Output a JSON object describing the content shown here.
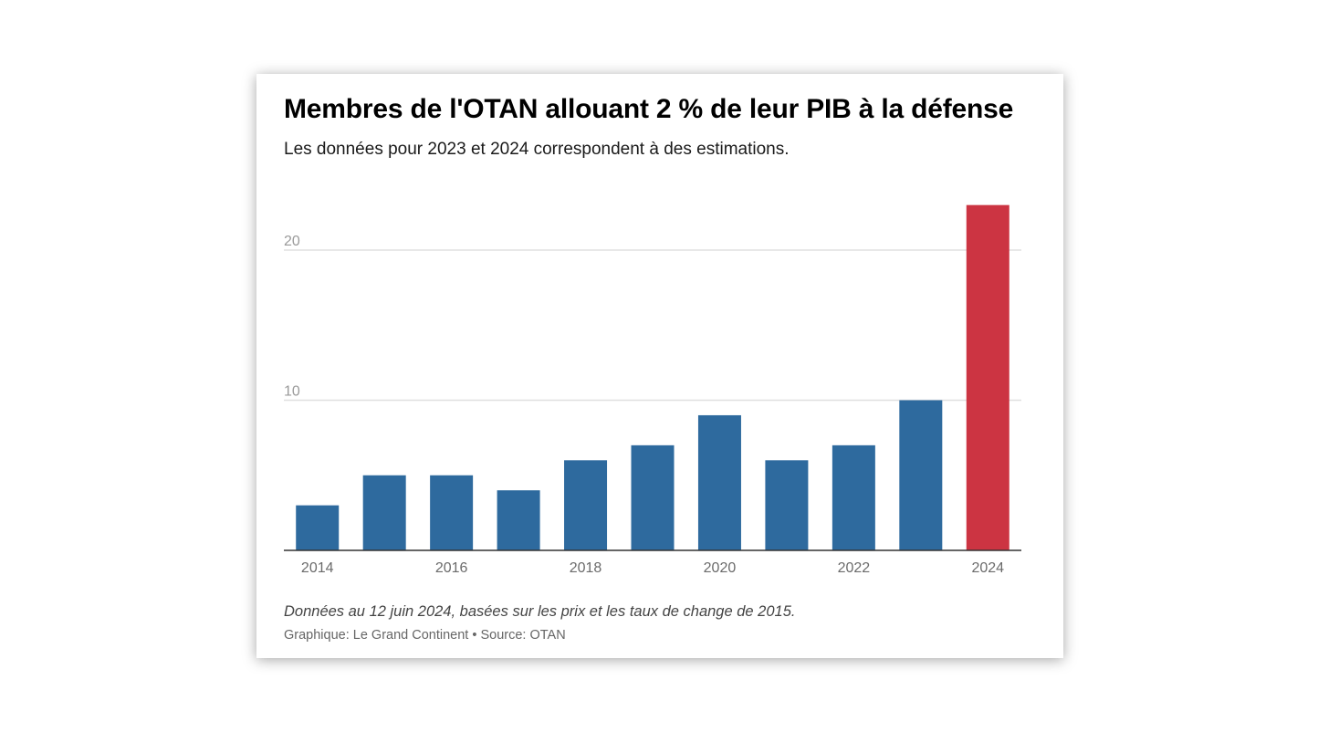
{
  "chart_data": {
    "type": "bar",
    "title": "Membres de l'OTAN allouant 2 % de leur PIB à la défense",
    "subtitle": "Les données pour 2023 et 2024 correspondent à des estimations.",
    "categories": [
      "2014",
      "2015",
      "2016",
      "2017",
      "2018",
      "2019",
      "2020",
      "2021",
      "2022",
      "2023",
      "2024"
    ],
    "values": [
      3,
      5,
      5,
      4,
      6,
      7,
      9,
      6,
      7,
      10,
      23
    ],
    "x_tick_labels": [
      "2014",
      "",
      "2016",
      "",
      "2018",
      "",
      "2020",
      "",
      "2022",
      "",
      "2024"
    ],
    "y_ticks": [
      10,
      20
    ],
    "ylim": [
      0,
      23
    ],
    "xlabel": "",
    "ylabel": "",
    "grid": true,
    "legend": "none",
    "colors": {
      "bar": "#2e6a9e",
      "highlight": "#cc3442",
      "grid": "#e0e0e0",
      "axis": "#333333"
    },
    "highlight_category": "2024",
    "note": "Données au 12 juin 2024, basées sur les prix et les taux de change de 2015.",
    "credit": "Graphique: Le Grand Continent • Source: OTAN"
  }
}
